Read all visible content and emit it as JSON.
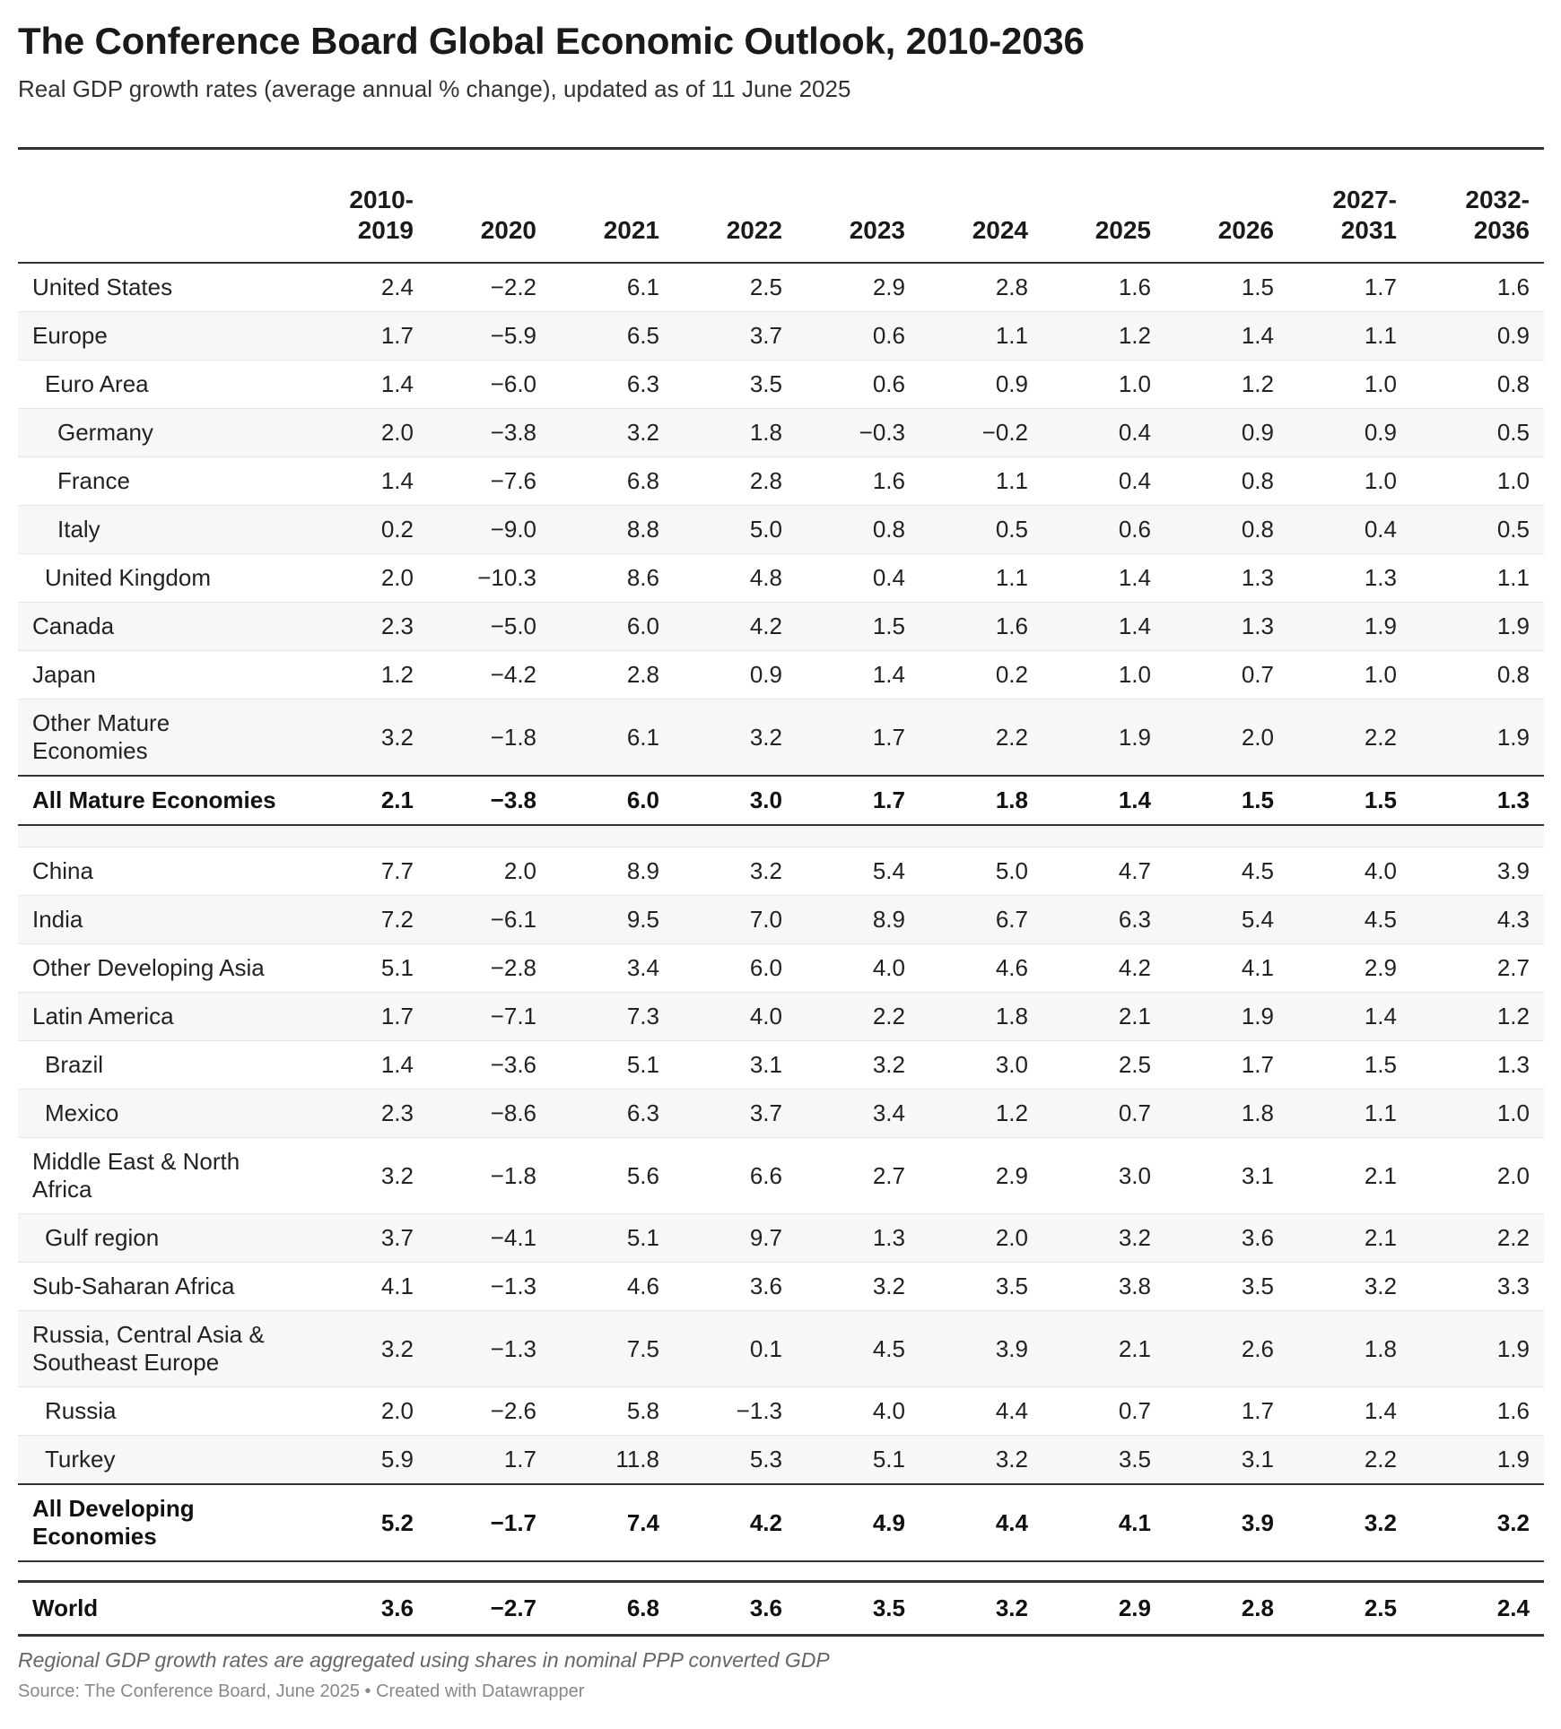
{
  "title": "The Conference Board Global Economic Outlook, 2010-2036",
  "subtitle": "Real GDP growth rates (average annual % change), updated as of 11 June 2025",
  "columns": [
    "2010-2019",
    "2020",
    "2021",
    "2022",
    "2023",
    "2024",
    "2025",
    "2026",
    "2027-2031",
    "2032-2036"
  ],
  "columns_display": [
    [
      "2010-",
      "2019"
    ],
    [
      "2020"
    ],
    [
      "2021"
    ],
    [
      "2022"
    ],
    [
      "2023"
    ],
    [
      "2024"
    ],
    [
      "2025"
    ],
    [
      "2026"
    ],
    [
      "2027-",
      "2031"
    ],
    [
      "2032-",
      "2036"
    ]
  ],
  "chart_data": {
    "type": "table",
    "title": "The Conference Board Global Economic Outlook, 2010-2036",
    "subtitle": "Real GDP growth rates (average annual % change), updated as of 11 June 2025",
    "columns": [
      "2010-2019",
      "2020",
      "2021",
      "2022",
      "2023",
      "2024",
      "2025",
      "2026",
      "2027-2031",
      "2032-2036"
    ],
    "rows": [
      {
        "name": "United States",
        "indent": 0,
        "values": [
          "2.4",
          "−2.2",
          "6.1",
          "2.5",
          "2.9",
          "2.8",
          "1.6",
          "1.5",
          "1.7",
          "1.6"
        ]
      },
      {
        "name": "Europe",
        "indent": 0,
        "values": [
          "1.7",
          "−5.9",
          "6.5",
          "3.7",
          "0.6",
          "1.1",
          "1.2",
          "1.4",
          "1.1",
          "0.9"
        ]
      },
      {
        "name": "Euro Area",
        "indent": 1,
        "values": [
          "1.4",
          "−6.0",
          "6.3",
          "3.5",
          "0.6",
          "0.9",
          "1.0",
          "1.2",
          "1.0",
          "0.8"
        ]
      },
      {
        "name": "Germany",
        "indent": 2,
        "values": [
          "2.0",
          "−3.8",
          "3.2",
          "1.8",
          "−0.3",
          "−0.2",
          "0.4",
          "0.9",
          "0.9",
          "0.5"
        ]
      },
      {
        "name": "France",
        "indent": 2,
        "values": [
          "1.4",
          "−7.6",
          "6.8",
          "2.8",
          "1.6",
          "1.1",
          "0.4",
          "0.8",
          "1.0",
          "1.0"
        ]
      },
      {
        "name": "Italy",
        "indent": 2,
        "values": [
          "0.2",
          "−9.0",
          "8.8",
          "5.0",
          "0.8",
          "0.5",
          "0.6",
          "0.8",
          "0.4",
          "0.5"
        ]
      },
      {
        "name": "United Kingdom",
        "indent": 1,
        "values": [
          "2.0",
          "−10.3",
          "8.6",
          "4.8",
          "0.4",
          "1.1",
          "1.4",
          "1.3",
          "1.3",
          "1.1"
        ]
      },
      {
        "name": "Canada",
        "indent": 0,
        "values": [
          "2.3",
          "−5.0",
          "6.0",
          "4.2",
          "1.5",
          "1.6",
          "1.4",
          "1.3",
          "1.9",
          "1.9"
        ]
      },
      {
        "name": "Japan",
        "indent": 0,
        "values": [
          "1.2",
          "−4.2",
          "2.8",
          "0.9",
          "1.4",
          "0.2",
          "1.0",
          "0.7",
          "1.0",
          "0.8"
        ]
      },
      {
        "name": "Other Mature Economies",
        "indent": 0,
        "tall": true,
        "values": [
          "3.2",
          "−1.8",
          "6.1",
          "3.2",
          "1.7",
          "2.2",
          "1.9",
          "2.0",
          "2.2",
          "1.9"
        ]
      },
      {
        "name": "All Mature Economies",
        "indent": 0,
        "total": true,
        "values": [
          "2.1",
          "−3.8",
          "6.0",
          "3.0",
          "1.7",
          "1.8",
          "1.4",
          "1.5",
          "1.5",
          "1.3"
        ]
      },
      {
        "spacer": true
      },
      {
        "name": "China",
        "indent": 0,
        "values": [
          "7.7",
          "2.0",
          "8.9",
          "3.2",
          "5.4",
          "5.0",
          "4.7",
          "4.5",
          "4.0",
          "3.9"
        ]
      },
      {
        "name": "India",
        "indent": 0,
        "values": [
          "7.2",
          "−6.1",
          "9.5",
          "7.0",
          "8.9",
          "6.7",
          "6.3",
          "5.4",
          "4.5",
          "4.3"
        ]
      },
      {
        "name": "Other Developing Asia",
        "indent": 0,
        "values": [
          "5.1",
          "−2.8",
          "3.4",
          "6.0",
          "4.0",
          "4.6",
          "4.2",
          "4.1",
          "2.9",
          "2.7"
        ]
      },
      {
        "name": "Latin America",
        "indent": 0,
        "values": [
          "1.7",
          "−7.1",
          "7.3",
          "4.0",
          "2.2",
          "1.8",
          "2.1",
          "1.9",
          "1.4",
          "1.2"
        ]
      },
      {
        "name": "Brazil",
        "indent": 1,
        "values": [
          "1.4",
          "−3.6",
          "5.1",
          "3.1",
          "3.2",
          "3.0",
          "2.5",
          "1.7",
          "1.5",
          "1.3"
        ]
      },
      {
        "name": "Mexico",
        "indent": 1,
        "values": [
          "2.3",
          "−8.6",
          "6.3",
          "3.7",
          "3.4",
          "1.2",
          "0.7",
          "1.8",
          "1.1",
          "1.0"
        ]
      },
      {
        "name": "Middle East & North Africa",
        "indent": 0,
        "tall": true,
        "values": [
          "3.2",
          "−1.8",
          "5.6",
          "6.6",
          "2.7",
          "2.9",
          "3.0",
          "3.1",
          "2.1",
          "2.0"
        ]
      },
      {
        "name": "Gulf region",
        "indent": 1,
        "values": [
          "3.7",
          "−4.1",
          "5.1",
          "9.7",
          "1.3",
          "2.0",
          "3.2",
          "3.6",
          "2.1",
          "2.2"
        ]
      },
      {
        "name": "Sub-Saharan Africa",
        "indent": 0,
        "values": [
          "4.1",
          "−1.3",
          "4.6",
          "3.6",
          "3.2",
          "3.5",
          "3.8",
          "3.5",
          "3.2",
          "3.3"
        ]
      },
      {
        "name": "Russia, Central Asia & Southeast Europe",
        "indent": 0,
        "tall": true,
        "values": [
          "3.2",
          "−1.3",
          "7.5",
          "0.1",
          "4.5",
          "3.9",
          "2.1",
          "2.6",
          "1.8",
          "1.9"
        ]
      },
      {
        "name": "Russia",
        "indent": 1,
        "values": [
          "2.0",
          "−2.6",
          "5.8",
          "−1.3",
          "4.0",
          "4.4",
          "0.7",
          "1.7",
          "1.4",
          "1.6"
        ]
      },
      {
        "name": "Turkey",
        "indent": 1,
        "values": [
          "5.9",
          "1.7",
          "11.8",
          "5.3",
          "5.1",
          "3.2",
          "3.5",
          "3.1",
          "2.2",
          "1.9"
        ]
      },
      {
        "name": "All Developing Economies",
        "indent": 0,
        "total": true,
        "tall": true,
        "values": [
          "5.2",
          "−1.7",
          "7.4",
          "4.2",
          "4.9",
          "4.4",
          "4.1",
          "3.9",
          "3.2",
          "3.2"
        ]
      },
      {
        "spacer_world": true
      },
      {
        "name": "World",
        "indent": 0,
        "world": true,
        "values": [
          "3.6",
          "−2.7",
          "6.8",
          "3.6",
          "3.5",
          "3.2",
          "2.9",
          "2.8",
          "2.5",
          "2.4"
        ]
      }
    ]
  },
  "footer": {
    "note": "Regional GDP growth rates are aggregated using shares in nominal PPP converted GDP",
    "source": "Source: The Conference Board, June 2025 • Created with Datawrapper"
  }
}
